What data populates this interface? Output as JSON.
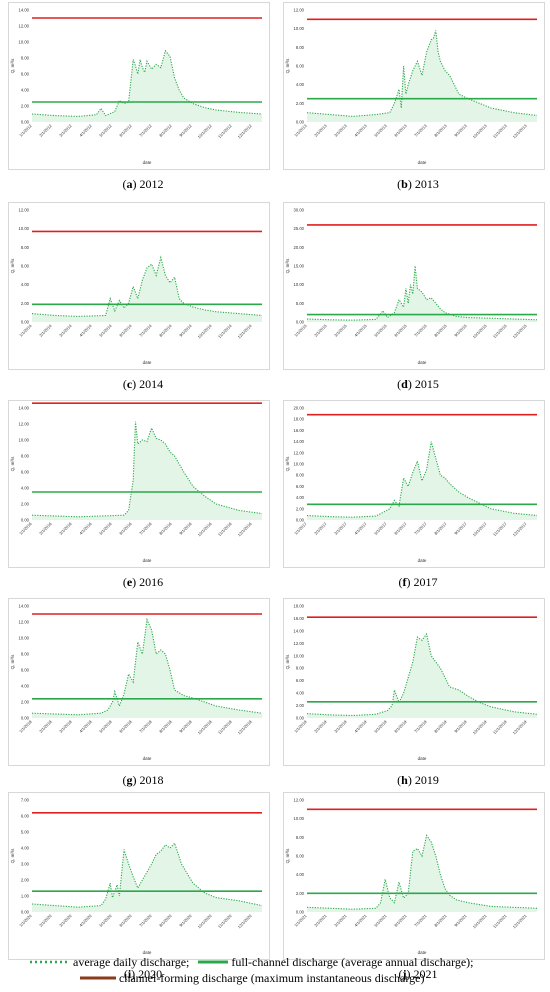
{
  "chart_data": [
    {
      "id": "a",
      "caption_letter": "a",
      "caption_year": "2012",
      "type": "line",
      "yticks": [
        "0.00",
        "2.00",
        "4.00",
        "6.00",
        "8.00",
        "10.00",
        "12.00",
        "14.00"
      ],
      "ymax": 14,
      "xticks": [
        "1/1/2012",
        "2/1/2012",
        "3/1/2012",
        "4/1/2012",
        "5/1/2012",
        "6/1/2012",
        "7/1/2012",
        "8/1/2012",
        "9/1/2012",
        "10/1/2012",
        "11/1/2012",
        "12/1/2012"
      ],
      "ylabel": "Q, m³/s",
      "xlabel": "date",
      "red": 13.0,
      "green": 2.5,
      "x": [
        0,
        0.1,
        0.2,
        0.28,
        0.3,
        0.32,
        0.36,
        0.38,
        0.4,
        0.42,
        0.44,
        0.45,
        0.46,
        0.47,
        0.48,
        0.49,
        0.5,
        0.52,
        0.54,
        0.56,
        0.58,
        0.6,
        0.62,
        0.64,
        0.66,
        0.7,
        0.75,
        0.8,
        0.9,
        1.0
      ],
      "y": [
        1.0,
        0.8,
        0.7,
        0.9,
        1.7,
        0.8,
        1.3,
        2.7,
        2.3,
        2.5,
        7.8,
        7.0,
        6.0,
        7.8,
        6.8,
        6.2,
        7.6,
        6.6,
        7.2,
        6.8,
        8.9,
        8.2,
        5.5,
        4.0,
        3.0,
        2.3,
        1.8,
        1.5,
        1.2,
        1.0
      ]
    },
    {
      "id": "b",
      "caption_letter": "b",
      "caption_year": "2013",
      "type": "line",
      "yticks": [
        "0.00",
        "2.00",
        "4.00",
        "6.00",
        "8.00",
        "10.00",
        "12.00"
      ],
      "ymax": 12,
      "xticks": [
        "1/1/2013",
        "2/1/2013",
        "3/1/2013",
        "4/1/2013",
        "5/1/2013",
        "6/1/2013",
        "7/1/2013",
        "8/1/2013",
        "9/1/2013",
        "10/1/2013",
        "11/1/2013",
        "12/1/2013"
      ],
      "ylabel": "Q, m³/s",
      "xlabel": "date",
      "red": 11.0,
      "green": 2.5,
      "x": [
        0,
        0.1,
        0.2,
        0.3,
        0.36,
        0.38,
        0.4,
        0.41,
        0.42,
        0.43,
        0.44,
        0.46,
        0.48,
        0.5,
        0.52,
        0.54,
        0.55,
        0.56,
        0.57,
        0.58,
        0.6,
        0.62,
        0.64,
        0.66,
        0.7,
        0.75,
        0.8,
        0.9,
        1.0
      ],
      "y": [
        1.0,
        0.8,
        0.6,
        0.8,
        1.0,
        2.0,
        3.5,
        1.5,
        6.0,
        3.0,
        4.0,
        5.5,
        6.5,
        5.0,
        7.5,
        8.8,
        9.0,
        9.8,
        7.5,
        6.5,
        5.5,
        5.0,
        4.0,
        3.0,
        2.5,
        2.0,
        1.5,
        1.0,
        0.7
      ]
    },
    {
      "id": "c",
      "caption_letter": "c",
      "caption_year": "2014",
      "type": "line",
      "yticks": [
        "0.00",
        "2.00",
        "4.00",
        "6.00",
        "8.00",
        "10.00",
        "12.00"
      ],
      "ymax": 12,
      "xticks": [
        "1/1/2014",
        "2/1/2014",
        "3/1/2014",
        "4/1/2014",
        "5/1/2014",
        "6/1/2014",
        "7/1/2014",
        "8/1/2014",
        "9/1/2014",
        "10/1/2014",
        "11/1/2014",
        "12/1/2014"
      ],
      "ylabel": "Q, m³/s",
      "xlabel": "date",
      "red": 9.7,
      "green": 1.9,
      "x": [
        0,
        0.1,
        0.2,
        0.32,
        0.34,
        0.36,
        0.38,
        0.4,
        0.42,
        0.44,
        0.46,
        0.48,
        0.5,
        0.52,
        0.54,
        0.56,
        0.58,
        0.6,
        0.62,
        0.64,
        0.66,
        0.7,
        0.75,
        0.8,
        0.9,
        1.0
      ],
      "y": [
        0.9,
        0.7,
        0.6,
        0.7,
        2.5,
        1.2,
        2.3,
        1.5,
        2.0,
        3.8,
        2.5,
        4.5,
        5.8,
        6.2,
        5.0,
        6.9,
        5.0,
        4.2,
        4.8,
        2.5,
        2.0,
        1.6,
        1.3,
        1.1,
        0.9,
        0.7
      ]
    },
    {
      "id": "d",
      "caption_letter": "d",
      "caption_year": "2015",
      "type": "line",
      "yticks": [
        "0.00",
        "5.00",
        "10.00",
        "15.00",
        "20.00",
        "25.00",
        "30.00"
      ],
      "ymax": 30,
      "xticks": [
        "1/1/2015",
        "2/1/2015",
        "3/1/2015",
        "4/1/2015",
        "5/1/2015",
        "6/1/2015",
        "7/1/2015",
        "8/1/2015",
        "9/1/2015",
        "10/1/2015",
        "11/1/2015",
        "12/1/2015"
      ],
      "ylabel": "Q, m³/s",
      "xlabel": "date",
      "red": 26.0,
      "green": 2.0,
      "x": [
        0,
        0.1,
        0.2,
        0.3,
        0.33,
        0.35,
        0.38,
        0.4,
        0.42,
        0.43,
        0.44,
        0.45,
        0.46,
        0.47,
        0.48,
        0.5,
        0.52,
        0.54,
        0.56,
        0.58,
        0.6,
        0.65,
        0.7,
        0.8,
        0.9,
        1.0
      ],
      "y": [
        0.8,
        0.6,
        0.5,
        0.7,
        3.0,
        1.2,
        2.5,
        6.0,
        4.0,
        9.0,
        5.0,
        10.0,
        7.5,
        15.0,
        9.0,
        8.0,
        6.0,
        6.5,
        5.0,
        3.5,
        2.5,
        1.5,
        1.2,
        1.0,
        0.8,
        0.6
      ]
    },
    {
      "id": "e",
      "caption_letter": "e",
      "caption_year": "2016",
      "type": "line",
      "yticks": [
        "0.00",
        "2.00",
        "4.00",
        "6.00",
        "8.00",
        "10.00",
        "12.00",
        "14.00"
      ],
      "ymax": 14,
      "xticks": [
        "1/1/2016",
        "2/1/2016",
        "3/1/2016",
        "4/1/2016",
        "5/1/2016",
        "6/1/2016",
        "7/1/2016",
        "8/1/2016",
        "9/1/2016",
        "10/1/2016",
        "11/1/2016",
        "12/1/2016"
      ],
      "ylabel": "Q, m³/s",
      "xlabel": "date",
      "red": 14.6,
      "green": 3.5,
      "x": [
        0,
        0.1,
        0.2,
        0.3,
        0.4,
        0.42,
        0.44,
        0.45,
        0.46,
        0.48,
        0.5,
        0.52,
        0.54,
        0.56,
        0.58,
        0.6,
        0.62,
        0.66,
        0.7,
        0.75,
        0.8,
        0.9,
        1.0
      ],
      "y": [
        0.6,
        0.5,
        0.4,
        0.5,
        0.6,
        1.2,
        5.0,
        12.3,
        9.5,
        10.0,
        9.8,
        11.5,
        10.2,
        10.0,
        9.5,
        8.5,
        8.0,
        6.0,
        4.2,
        3.0,
        2.0,
        1.2,
        0.8
      ]
    },
    {
      "id": "f",
      "caption_letter": "f",
      "caption_year": "2017",
      "type": "line",
      "yticks": [
        "0.00",
        "2.00",
        "4.00",
        "6.00",
        "8.00",
        "10.00",
        "12.00",
        "14.00",
        "16.00",
        "18.00",
        "20.00"
      ],
      "ymax": 20,
      "xticks": [
        "1/1/2017",
        "2/1/2017",
        "3/1/2017",
        "4/1/2017",
        "5/1/2017",
        "6/1/2017",
        "7/1/2017",
        "8/1/2017",
        "9/1/2017",
        "10/1/2017",
        "11/1/2017",
        "12/1/2017"
      ],
      "ylabel": "Q, m³/s",
      "xlabel": "date",
      "red": 18.8,
      "green": 2.8,
      "x": [
        0,
        0.1,
        0.2,
        0.3,
        0.36,
        0.38,
        0.4,
        0.42,
        0.44,
        0.46,
        0.48,
        0.5,
        0.52,
        0.54,
        0.56,
        0.58,
        0.6,
        0.62,
        0.66,
        0.7,
        0.75,
        0.8,
        0.9,
        1.0
      ],
      "y": [
        0.8,
        0.6,
        0.5,
        0.7,
        2.0,
        3.5,
        2.5,
        7.5,
        6.0,
        8.5,
        10.5,
        7.0,
        9.0,
        14.0,
        11.0,
        8.0,
        7.5,
        6.5,
        5.0,
        4.0,
        3.0,
        2.0,
        1.2,
        0.8
      ]
    },
    {
      "id": "g",
      "caption_letter": "g",
      "caption_year": "2018",
      "type": "line",
      "yticks": [
        "0.00",
        "2.00",
        "4.00",
        "6.00",
        "8.00",
        "10.00",
        "12.00",
        "14.00"
      ],
      "ymax": 14,
      "xticks": [
        "1/1/2018",
        "2/1/2018",
        "3/1/2018",
        "4/1/2018",
        "5/1/2018",
        "6/1/2018",
        "7/1/2018",
        "8/1/2018",
        "9/1/2018",
        "10/1/2018",
        "11/1/2018",
        "12/1/2018"
      ],
      "ylabel": "Q, m³/s",
      "xlabel": "date",
      "red": 13.0,
      "green": 2.4,
      "x": [
        0,
        0.1,
        0.2,
        0.3,
        0.33,
        0.35,
        0.36,
        0.38,
        0.4,
        0.42,
        0.44,
        0.46,
        0.48,
        0.5,
        0.52,
        0.54,
        0.56,
        0.58,
        0.6,
        0.62,
        0.66,
        0.7,
        0.75,
        0.8,
        0.9,
        1.0
      ],
      "y": [
        0.6,
        0.5,
        0.4,
        0.6,
        1.0,
        2.0,
        3.3,
        1.5,
        3.0,
        5.5,
        4.5,
        9.5,
        8.0,
        12.3,
        11.0,
        8.0,
        8.5,
        8.0,
        6.0,
        3.5,
        2.8,
        2.5,
        2.0,
        1.5,
        1.0,
        0.6
      ]
    },
    {
      "id": "h",
      "caption_letter": "h",
      "caption_year": "2019",
      "type": "line",
      "yticks": [
        "0.00",
        "2.00",
        "4.00",
        "6.00",
        "8.00",
        "10.00",
        "12.00",
        "14.00",
        "16.00",
        "18.00"
      ],
      "ymax": 18,
      "xticks": [
        "1/1/2019",
        "2/1/2019",
        "3/1/2019",
        "4/1/2019",
        "5/1/2019",
        "6/1/2019",
        "7/1/2019",
        "8/1/2019",
        "9/1/2019",
        "10/1/2019",
        "11/1/2019",
        "12/1/2019"
      ],
      "ylabel": "Q, m³/s",
      "xlabel": "date",
      "red": 16.2,
      "green": 2.6,
      "x": [
        0,
        0.1,
        0.2,
        0.3,
        0.35,
        0.37,
        0.38,
        0.4,
        0.42,
        0.44,
        0.46,
        0.48,
        0.5,
        0.52,
        0.54,
        0.56,
        0.58,
        0.6,
        0.62,
        0.66,
        0.7,
        0.75,
        0.8,
        0.9,
        1.0
      ],
      "y": [
        0.7,
        0.5,
        0.4,
        0.6,
        1.2,
        2.0,
        4.5,
        2.5,
        4.0,
        6.5,
        9.0,
        13.0,
        12.5,
        13.5,
        10.0,
        9.0,
        8.0,
        6.5,
        5.0,
        4.5,
        3.5,
        2.5,
        1.8,
        1.0,
        0.6
      ]
    },
    {
      "id": "i",
      "caption_letter": "i",
      "caption_year": "2020",
      "type": "line",
      "yticks": [
        "0.00",
        "1.00",
        "2.00",
        "3.00",
        "4.00",
        "5.00",
        "6.00",
        "7.00"
      ],
      "ymax": 7,
      "xticks": [
        "1/1/2020",
        "2/1/2020",
        "3/1/2020",
        "4/1/2020",
        "5/1/2020",
        "6/1/2020",
        "7/1/2020",
        "8/1/2020",
        "9/1/2020",
        "10/1/2020",
        "11/1/2020",
        "12/1/2020"
      ],
      "ylabel": "Q, m³/s",
      "xlabel": "date",
      "red": 6.2,
      "green": 1.3,
      "x": [
        0,
        0.1,
        0.2,
        0.3,
        0.32,
        0.34,
        0.35,
        0.37,
        0.38,
        0.4,
        0.42,
        0.44,
        0.46,
        0.48,
        0.5,
        0.52,
        0.54,
        0.56,
        0.58,
        0.6,
        0.62,
        0.65,
        0.7,
        0.75,
        0.8,
        0.9,
        1.0
      ],
      "y": [
        0.5,
        0.4,
        0.3,
        0.4,
        0.8,
        1.8,
        0.9,
        1.7,
        1.0,
        3.9,
        3.0,
        2.2,
        1.5,
        2.0,
        2.5,
        3.0,
        3.6,
        3.8,
        4.2,
        4.0,
        4.3,
        3.0,
        1.8,
        1.2,
        0.9,
        0.7,
        0.4
      ]
    },
    {
      "id": "j",
      "caption_letter": "j",
      "caption_year": "2021",
      "type": "line",
      "yticks": [
        "0.00",
        "2.00",
        "4.00",
        "6.00",
        "8.00",
        "10.00",
        "12.00"
      ],
      "ymax": 12,
      "xticks": [
        "1/1/2021",
        "2/1/2021",
        "3/1/2021",
        "4/1/2021",
        "5/1/2021",
        "6/1/2021",
        "7/1/2021",
        "8/1/2021",
        "9/1/2021",
        "10/1/2021",
        "11/1/2021",
        "12/1/2021"
      ],
      "ylabel": "Q, m³/s",
      "xlabel": "date",
      "red": 11.0,
      "green": 2.0,
      "x": [
        0,
        0.1,
        0.2,
        0.3,
        0.32,
        0.34,
        0.36,
        0.38,
        0.4,
        0.42,
        0.44,
        0.46,
        0.48,
        0.5,
        0.52,
        0.54,
        0.56,
        0.58,
        0.6,
        0.62,
        0.65,
        0.7,
        0.75,
        0.8,
        0.9,
        1.0
      ],
      "y": [
        0.5,
        0.4,
        0.3,
        0.4,
        1.0,
        3.5,
        1.5,
        1.0,
        3.2,
        1.5,
        2.0,
        6.5,
        6.8,
        6.0,
        8.2,
        7.5,
        6.0,
        4.0,
        2.5,
        1.8,
        1.3,
        1.0,
        0.8,
        0.6,
        0.5,
        0.4
      ]
    }
  ],
  "legend": {
    "daily": "average daily discharge;",
    "full": "full-channel discharge (average annual discharge);",
    "forming": "channel-forming discharge (maximum instantaneous discharge)"
  },
  "colors": {
    "daily": "#2ba84a",
    "full": "#2ba84a",
    "forming_line": "#e02020",
    "forming_legend": "#8b3a1a",
    "shade": "#e3f5e6",
    "frame": "#d8d8d8"
  }
}
